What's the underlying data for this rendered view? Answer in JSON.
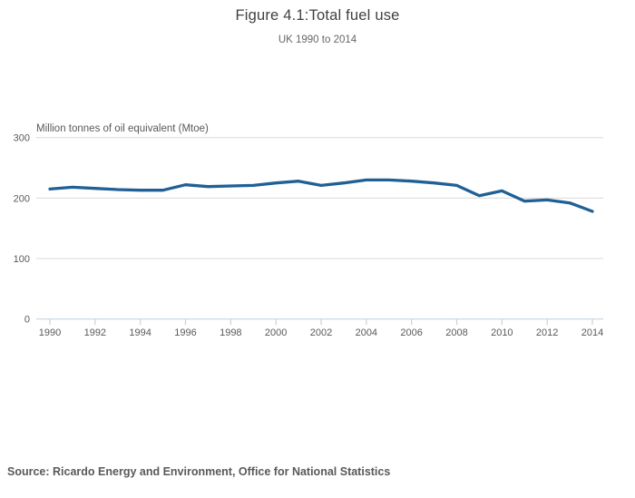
{
  "header": {
    "title": "Figure 4.1:Total fuel use",
    "subtitle": "UK 1990 to 2014"
  },
  "source": {
    "text": "Source: Ricardo Energy and Environment, Office for National Statistics"
  },
  "chart_data": {
    "type": "line",
    "title": "Figure 4.1:Total fuel use",
    "subtitle": "UK 1990 to 2014",
    "xlabel": "",
    "ylabel": "Million tonnes of oil equivalent (Mtoe)",
    "x": [
      1990,
      1991,
      1992,
      1993,
      1994,
      1995,
      1996,
      1997,
      1998,
      1999,
      2000,
      2001,
      2002,
      2003,
      2004,
      2005,
      2006,
      2007,
      2008,
      2009,
      2010,
      2011,
      2012,
      2013,
      2014
    ],
    "series": [
      {
        "name": "Total fuel use (Mtoe)",
        "values": [
          215,
          218,
          216,
          214,
          213,
          213,
          222,
          219,
          220,
          221,
          225,
          228,
          221,
          225,
          230,
          230,
          228,
          225,
          221,
          204,
          212,
          195,
          197,
          192,
          178
        ],
        "color": "#206095"
      }
    ],
    "ylim": [
      0,
      300
    ],
    "yticks": [
      0,
      100,
      200,
      300
    ],
    "xticks": [
      1990,
      1992,
      1994,
      1996,
      1998,
      2000,
      2002,
      2004,
      2006,
      2008,
      2010,
      2012,
      2014
    ],
    "grid": "horizontal",
    "legend": "none"
  },
  "colors": {
    "line": "#206095",
    "gridline": "#d9d9d9",
    "axis": "#c6d3de",
    "tick_label": "#595959",
    "title_text": "#404040",
    "subtitle_text": "#666666"
  }
}
